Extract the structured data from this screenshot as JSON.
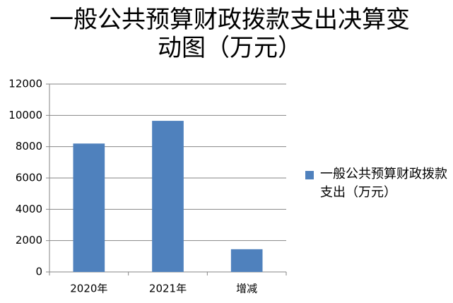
{
  "chart_data": {
    "type": "bar",
    "title": "一般公共预算财政拨款支出决算变动图（万元）",
    "categories": [
      "2020年",
      "2021年",
      "增减"
    ],
    "series": [
      {
        "name": "一般公共预算财政拨款支出（万元）",
        "color": "#4f81bd",
        "values": [
          8200,
          9650,
          1450
        ]
      }
    ],
    "ylim": [
      0,
      12000
    ],
    "yticks": [
      0,
      2000,
      4000,
      6000,
      8000,
      10000,
      12000
    ],
    "grid": true,
    "legend": "right"
  }
}
